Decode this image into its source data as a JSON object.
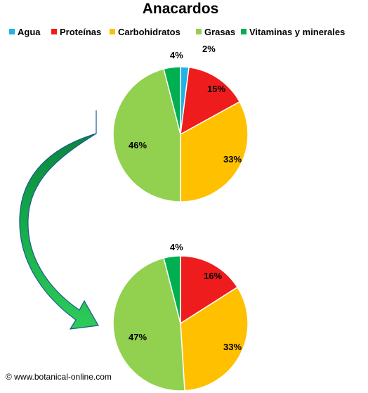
{
  "chart_data": {
    "type": "pie",
    "title": "Anacardos",
    "legend": {
      "position": "top",
      "entries": [
        {
          "name": "Agua",
          "color": "#1fb3e6"
        },
        {
          "name": "Proteínas",
          "color": "#ee1c1c"
        },
        {
          "name": "Carbohidratos",
          "color": "#ffc000"
        },
        {
          "name": "Grasas",
          "color": "#92d050"
        },
        {
          "name": "Vitaminas y minerales",
          "color": "#00b050"
        }
      ]
    },
    "charts": [
      {
        "categories": [
          "Agua",
          "Proteínas",
          "Carbohidratos",
          "Grasas",
          "Vitaminas y minerales"
        ],
        "values": [
          2,
          15,
          33,
          46,
          4
        ],
        "labels": [
          "2%",
          "15%",
          "33%",
          "46%",
          "4%"
        ]
      },
      {
        "categories": [
          "Proteínas",
          "Carbohidratos",
          "Grasas",
          "Vitaminas y minerales"
        ],
        "values": [
          16,
          33,
          47,
          4
        ],
        "labels": [
          "16%",
          "33%",
          "47%",
          "4%"
        ]
      }
    ],
    "annotation": {
      "arrow": "curved-arrow-icon"
    }
  },
  "credit": "© www.botanical-online.com"
}
